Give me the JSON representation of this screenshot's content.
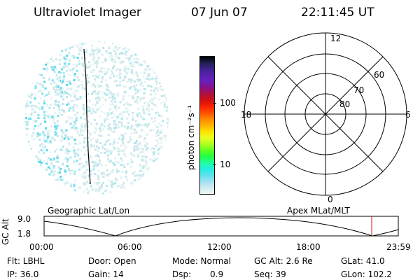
{
  "header": {
    "title": "Ultraviolet Imager",
    "date": "07 Jun 07",
    "time": "22:11:45 UT"
  },
  "colorbar": {
    "unit_label": "photon cm⁻²s⁻¹",
    "ticks": [
      "100",
      "10"
    ],
    "colors": [
      "#000000",
      "#202050",
      "#402090",
      "#5a1fb0",
      "#6a20b8",
      "#8a1080",
      "#b01040",
      "#d01010",
      "#ff2000",
      "#ff5000",
      "#ff8800",
      "#ffb000",
      "#ffe000",
      "#e8ff20",
      "#b0ff20",
      "#60ff20",
      "#20ff40",
      "#20ffa0",
      "#20f0e0",
      "#60e0f0",
      "#a0e0f0",
      "#d0ecf0",
      "#eef6f8"
    ]
  },
  "polar": {
    "hour_labels": {
      "top": "12",
      "left": "18",
      "right": "6",
      "bottom": "0"
    },
    "lat_labels": [
      "60",
      "70",
      "80"
    ]
  },
  "timeline": {
    "left_title": "Geographic Lat/Lon",
    "right_title": "Apex MLat/MLT",
    "y_axis": "GC Alt",
    "y_ticks": [
      "9.0",
      "1.8"
    ],
    "x_ticks": [
      "00:00",
      "06:00",
      "12:00",
      "18:00",
      "23:59"
    ]
  },
  "status": {
    "flt": "Flt: LBHL",
    "door": "Door: Open",
    "mode": "Mode: Normal",
    "gc_alt": "GC Alt: 2.6 Re",
    "glat": "GLat: 41.0",
    "ip": "IP: 36.0",
    "gain": "Gain: 14",
    "dsp_label": "Dsp:",
    "dsp_value": "0.9",
    "seq": "Seq: 39",
    "glon": "GLon: 102.2"
  }
}
